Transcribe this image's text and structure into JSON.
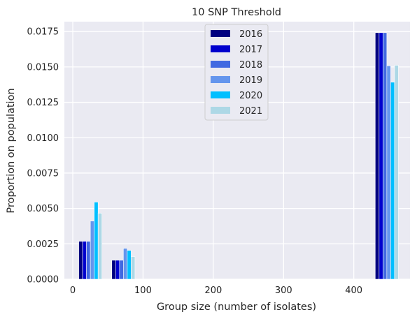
{
  "chart_data": {
    "type": "bar",
    "title": "10 SNP Threshold",
    "xlabel": "Group size (number of isolates)",
    "ylabel": "Proportion on population",
    "xlim": [
      -12,
      480
    ],
    "ylim": [
      0,
      0.0182
    ],
    "xticks": [
      0,
      100,
      200,
      300,
      400
    ],
    "xtick_labels": [
      "0",
      "100",
      "200",
      "300",
      "400"
    ],
    "yticks": [
      0.0,
      0.0025,
      0.005,
      0.0075,
      0.01,
      0.0125,
      0.015,
      0.0175
    ],
    "ytick_labels": [
      "0.0000",
      "0.0025",
      "0.0050",
      "0.0075",
      "0.0100",
      "0.0125",
      "0.0150",
      "0.0175"
    ],
    "grid": true,
    "legend_position": "upper-center",
    "bar_width": 5.5,
    "categories": [
      25,
      72,
      447
    ],
    "series": [
      {
        "name": "2016",
        "color": "#000080",
        "offset": -13.75,
        "values": [
          0.00268,
          0.00134,
          0.01742
        ]
      },
      {
        "name": "2017",
        "color": "#0000cd",
        "offset": -8.25,
        "values": [
          0.00268,
          0.00134,
          0.01742
        ]
      },
      {
        "name": "2018",
        "color": "#4169e1",
        "offset": -2.75,
        "values": [
          0.00268,
          0.00134,
          0.01742
        ]
      },
      {
        "name": "2019",
        "color": "#6495ed",
        "offset": 2.75,
        "values": [
          0.00411,
          0.00218,
          0.01508
        ]
      },
      {
        "name": "2020",
        "color": "#00bfff",
        "offset": 8.25,
        "values": [
          0.00545,
          0.00204,
          0.01392
        ]
      },
      {
        "name": "2021",
        "color": "#add8e6",
        "offset": 13.75,
        "values": [
          0.00467,
          0.0016,
          0.01512
        ]
      }
    ]
  }
}
